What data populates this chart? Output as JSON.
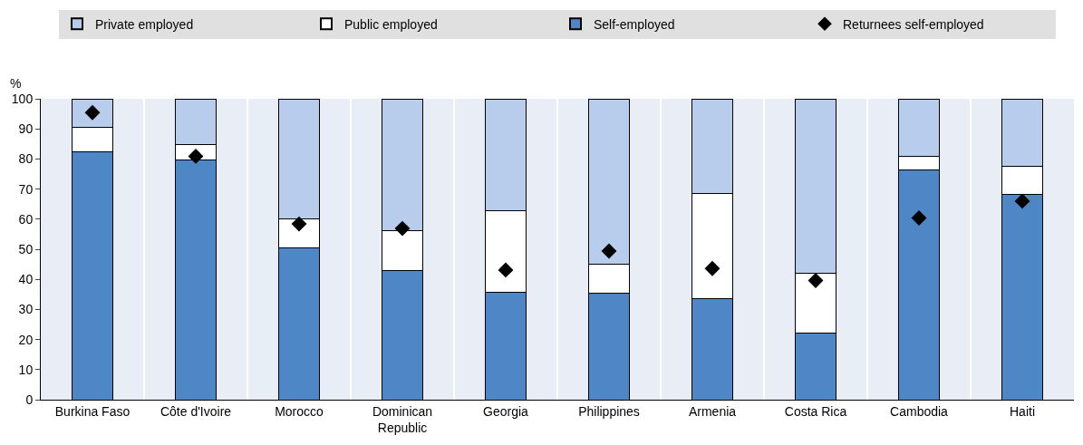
{
  "chart_data": {
    "type": "bar",
    "stacked": true,
    "ylabel": "%",
    "ylim": [
      0,
      100
    ],
    "yticks": [
      0,
      10,
      20,
      30,
      40,
      50,
      60,
      70,
      80,
      90,
      100
    ],
    "grid": false,
    "legend": "top",
    "categories": [
      "Burkina Faso",
      "Côte d'Ivoire",
      "Morocco",
      "Dominican Republic",
      "Georgia",
      "Philippines",
      "Armenia",
      "Costa Rica",
      "Cambodia",
      "Haiti"
    ],
    "series": [
      {
        "name": "Self-employed",
        "color": "#4e86c6",
        "values": [
          82.4,
          79.8,
          50.6,
          42.8,
          35.8,
          35.5,
          33.5,
          22.0,
          76.3,
          68.2
        ]
      },
      {
        "name": "Public employed",
        "color": "#ffffff",
        "values": [
          8.1,
          4.9,
          9.5,
          13.3,
          26.9,
          9.6,
          35.0,
          19.9,
          4.6,
          9.5
        ]
      },
      {
        "name": "Private employed",
        "color": "#b7cdeb",
        "values": [
          9.5,
          15.3,
          39.9,
          43.9,
          37.3,
          54.9,
          31.5,
          58.1,
          19.1,
          22.3
        ]
      },
      {
        "name": "Returnees self-employed",
        "type": "scatter",
        "marker": "diamond",
        "color": "#000000",
        "x": [
          "Burkina Faso",
          "Côte d'Ivoire",
          "Morocco",
          "Dominican Republic",
          "Georgia",
          "Philippines",
          "Armenia",
          "Costa Rica",
          "Cambodia",
          "Haiti"
        ],
        "values": [
          95.4,
          80.9,
          58.4,
          56.9,
          43.1,
          49.4,
          43.6,
          39.6,
          60.4,
          66.0
        ]
      }
    ]
  }
}
